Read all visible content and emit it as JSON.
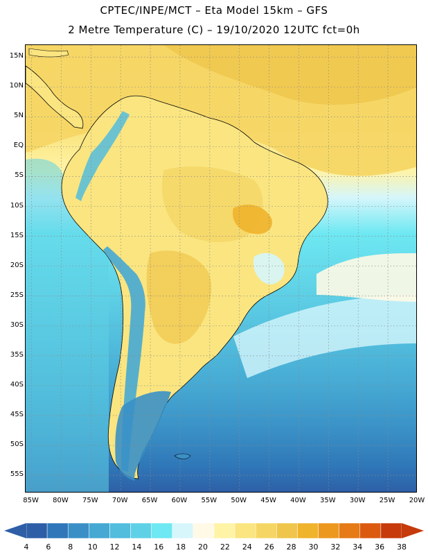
{
  "header": {
    "line1": "CPTEC/INPE/MCT –  Eta Model 15km – GFS",
    "line2": "2 Metre Temperature (C) – 19/10/2020 12UTC fct=0h"
  },
  "map": {
    "lat_labels": [
      "15N",
      "10N",
      "5N",
      "EQ",
      "5S",
      "10S",
      "15S",
      "20S",
      "25S",
      "30S",
      "35S",
      "40S",
      "45S",
      "50S",
      "55S"
    ],
    "lat_values": [
      15,
      10,
      5,
      0,
      -5,
      -10,
      -15,
      -20,
      -25,
      -30,
      -35,
      -40,
      -45,
      -50,
      -55
    ],
    "lon_labels": [
      "85W",
      "80W",
      "75W",
      "70W",
      "65W",
      "60W",
      "55W",
      "50W",
      "45W",
      "40W",
      "35W",
      "30W",
      "25W",
      "20W"
    ],
    "lon_values": [
      -85,
      -80,
      -75,
      -70,
      -65,
      -60,
      -55,
      -50,
      -45,
      -40,
      -35,
      -30,
      -25,
      -20
    ],
    "lat_range": [
      -58,
      17
    ],
    "lon_range": [
      -86,
      -20
    ],
    "grid": "dotted"
  },
  "legend": {
    "labels": [
      "4",
      "6",
      "8",
      "10",
      "12",
      "14",
      "16",
      "18",
      "20",
      "22",
      "24",
      "26",
      "28",
      "30",
      "32",
      "34",
      "36",
      "38"
    ],
    "colors": [
      "#2e5fa6",
      "#2f77b8",
      "#3a90c6",
      "#46a9d3",
      "#52bddd",
      "#5fd1e6",
      "#6ee8f2",
      "#d6f6fb",
      "#fff9e6",
      "#fff3a6",
      "#fae580",
      "#f5d665",
      "#efc64b",
      "#efb32c",
      "#ec981f",
      "#e57a16",
      "#db5a10",
      "#c63a0b"
    ]
  }
}
